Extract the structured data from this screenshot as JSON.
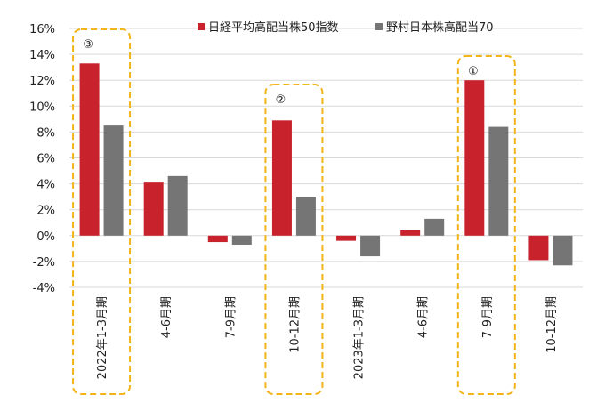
{
  "chart_data": {
    "type": "bar",
    "categories": [
      "2022年1-3月期",
      "4-6月期",
      "7-9月期",
      "10-12月期",
      "2023年1-3月期",
      "4-6月期",
      "7-9月期",
      "10-12月期"
    ],
    "series": [
      {
        "name": "日経平均高配当株50指数",
        "color": "#c8232c",
        "values": [
          13.3,
          4.1,
          -0.5,
          8.9,
          -0.4,
          0.4,
          12.0,
          -1.9
        ]
      },
      {
        "name": "野村日本株高配当70",
        "color": "#757575",
        "values": [
          8.5,
          4.6,
          -0.7,
          3.0,
          -1.6,
          1.3,
          8.4,
          -2.3
        ]
      }
    ],
    "yticks": [
      "16%",
      "14%",
      "12%",
      "10%",
      "8%",
      "6%",
      "4%",
      "2%",
      "0%",
      "-2%",
      "-4%"
    ],
    "ylim": [
      -4,
      16
    ],
    "grid": true,
    "legend_position": "top-right",
    "highlight_color": "#f2b418",
    "highlights": [
      {
        "category_index": 0,
        "marker": "③"
      },
      {
        "category_index": 3,
        "marker": "②"
      },
      {
        "category_index": 6,
        "marker": "①"
      }
    ]
  }
}
